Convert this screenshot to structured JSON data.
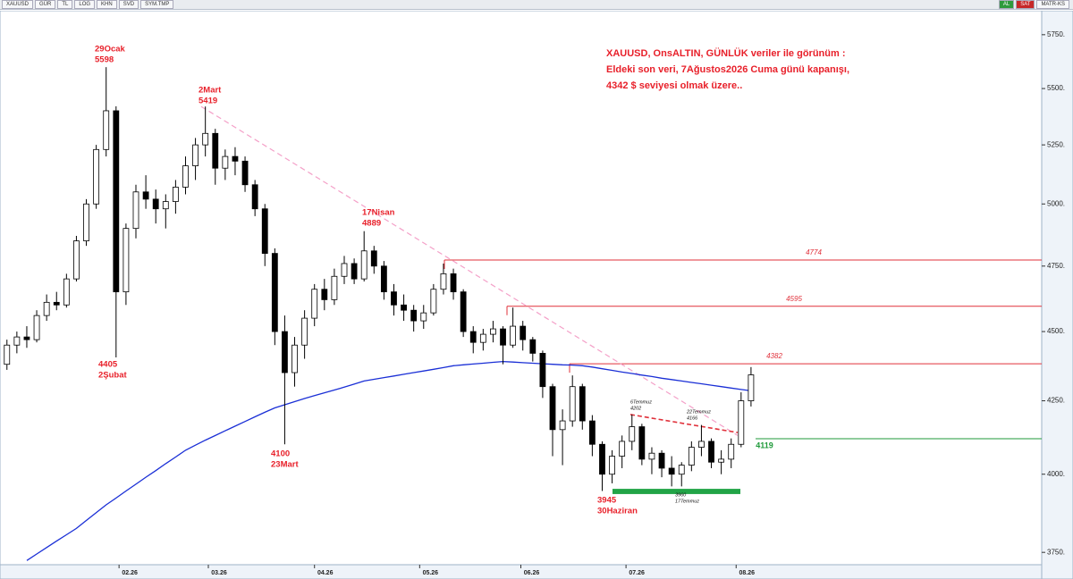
{
  "ui": {
    "toolbar_left": [
      "XAUUSD",
      "GÜR",
      "TL",
      "LOG",
      "KHN",
      "SVD",
      "SYM.TMP"
    ],
    "toolbar_right": [
      "AL",
      "SAT",
      "MATR-KS"
    ]
  },
  "chart_data": {
    "type": "candlestick",
    "log_scale": true,
    "up_color": "#ffffff",
    "down_color": "#000000",
    "categories": [
      null,
      null,
      null,
      null,
      null,
      null,
      null,
      null,
      null,
      null,
      null,
      null,
      null,
      null,
      null,
      null,
      null,
      null,
      null,
      null,
      null,
      null,
      null,
      null,
      null,
      null,
      null,
      null,
      null,
      null,
      null,
      null,
      null,
      null,
      null,
      null,
      null,
      null,
      null,
      null,
      null,
      null,
      null,
      null,
      null,
      null,
      null,
      null,
      null,
      null,
      null,
      null,
      null,
      null,
      null,
      null,
      null,
      null,
      null,
      null,
      null,
      null,
      null,
      null,
      null,
      null,
      null,
      null,
      null,
      null,
      null,
      null,
      null,
      null,
      null,
      null
    ],
    "open": [
      4380,
      4450,
      4480,
      4470,
      4560,
      4610,
      4600,
      4700,
      4850,
      5000,
      5230,
      5400,
      4650,
      4900,
      5050,
      5020,
      4980,
      5010,
      5070,
      5160,
      5250,
      5300,
      5150,
      5200,
      5180,
      5080,
      4980,
      4800,
      4500,
      4350,
      4450,
      4550,
      4660,
      4620,
      4710,
      4760,
      4700,
      4810,
      4750,
      4650,
      4600,
      4580,
      4540,
      4570,
      4660,
      4720,
      4650,
      4500,
      4460,
      4490,
      4510,
      4450,
      4520,
      4470,
      4420,
      4300,
      4150,
      4180,
      4300,
      4180,
      4100,
      4000,
      4060,
      4110,
      4160,
      4050,
      4070,
      4020,
      4000,
      4030,
      4090,
      4110,
      4040,
      4050,
      4100,
      4250
    ],
    "high": [
      4470,
      4500,
      4520,
      4580,
      4640,
      4650,
      4720,
      4870,
      5020,
      5250,
      5598,
      5420,
      4920,
      5080,
      5120,
      5060,
      5040,
      5100,
      5200,
      5280,
      5419,
      5320,
      5230,
      5240,
      5200,
      5100,
      5000,
      4820,
      4560,
      4480,
      4580,
      4680,
      4700,
      4740,
      4790,
      4780,
      4889,
      4830,
      4770,
      4680,
      4640,
      4600,
      4600,
      4680,
      4760,
      4740,
      4660,
      4520,
      4510,
      4540,
      4520,
      4590,
      4540,
      4480,
      4430,
      4310,
      4220,
      4340,
      4310,
      4200,
      4110,
      4080,
      4130,
      4202,
      4170,
      4090,
      4080,
      4060,
      4040,
      4110,
      4166,
      4120,
      4080,
      4120,
      4280,
      4370
    ],
    "low": [
      4360,
      4420,
      4440,
      4460,
      4540,
      4580,
      4590,
      4690,
      4830,
      4980,
      5200,
      4405,
      4600,
      4860,
      4980,
      4920,
      4900,
      4960,
      5040,
      5100,
      5200,
      5080,
      5100,
      5120,
      5050,
      4950,
      4750,
      4450,
      4100,
      4300,
      4400,
      4520,
      4580,
      4600,
      4680,
      4680,
      4690,
      4720,
      4620,
      4560,
      4540,
      4500,
      4510,
      4560,
      4640,
      4620,
      4480,
      4420,
      4430,
      4460,
      4380,
      4440,
      4430,
      4390,
      4260,
      4060,
      4030,
      4160,
      4150,
      4060,
      3945,
      3970,
      4020,
      4080,
      4030,
      4000,
      3990,
      3960,
      3960,
      4010,
      4060,
      4020,
      4000,
      4020,
      4090,
      4230
    ],
    "close": [
      4450,
      4480,
      4470,
      4560,
      4610,
      4600,
      4700,
      4850,
      5000,
      5230,
      5400,
      4650,
      4900,
      5050,
      5020,
      4980,
      5010,
      5070,
      5160,
      5250,
      5300,
      5150,
      5200,
      5180,
      5080,
      4980,
      4800,
      4500,
      4350,
      4450,
      4550,
      4660,
      4620,
      4710,
      4760,
      4700,
      4810,
      4750,
      4650,
      4600,
      4580,
      4540,
      4570,
      4660,
      4720,
      4650,
      4500,
      4460,
      4490,
      4510,
      4450,
      4520,
      4470,
      4420,
      4300,
      4150,
      4180,
      4300,
      4180,
      4100,
      4000,
      4060,
      4110,
      4160,
      4050,
      4070,
      4020,
      4000,
      4030,
      4090,
      4110,
      4040,
      4050,
      4100,
      4250,
      4342
    ],
    "ma": {
      "color": "#1a2fd6",
      "values": [
        null,
        null,
        3725,
        3745,
        3765,
        3785,
        3805,
        3825,
        3850,
        3875,
        3900,
        3922,
        3945,
        3967,
        3990,
        4012,
        4035,
        4057,
        4080,
        4097,
        4114,
        4130,
        4146,
        4162,
        4178,
        4194,
        4210,
        4225,
        4236,
        4247,
        4258,
        4268,
        4278,
        4288,
        4298,
        4309,
        4320,
        4326,
        4332,
        4338,
        4344,
        4350,
        4356,
        4362,
        4368,
        4375,
        4378,
        4381,
        4384,
        4387,
        4390,
        4388,
        4386,
        4384,
        4382,
        4380,
        4378,
        4377,
        4375,
        4370,
        4364,
        4358,
        4352,
        4347,
        4341,
        4336,
        4330,
        4325,
        4320,
        4315,
        4310,
        4305,
        4300,
        4295,
        4290,
        4285
      ]
    },
    "ylim": [
      3712,
      5865
    ],
    "yticks": [
      {
        "value": 3750,
        "label": "3750."
      },
      {
        "value": 4000,
        "label": "4000."
      },
      {
        "value": 4250,
        "label": "4250."
      },
      {
        "value": 4500,
        "label": "4500."
      },
      {
        "value": 4750,
        "label": "4750."
      },
      {
        "value": 5000,
        "label": "5000."
      },
      {
        "value": 5250,
        "label": "5250."
      },
      {
        "value": 5500,
        "label": "5500."
      },
      {
        "value": 5750,
        "label": "5750."
      }
    ],
    "xlim": [
      -0.7,
      104.3
    ],
    "xticks": [
      {
        "value": 11.3,
        "label": "02.26"
      },
      {
        "value": 20.3,
        "label": "03.26"
      },
      {
        "value": 31.0,
        "label": "04.26"
      },
      {
        "value": 41.6,
        "label": "05.26"
      },
      {
        "value": 51.8,
        "label": "06.26"
      },
      {
        "value": 62.4,
        "label": "07.26"
      },
      {
        "value": 73.5,
        "label": "08.26"
      }
    ],
    "levels": [
      {
        "value": 4774,
        "color": "#e0303a"
      },
      {
        "value": 4595,
        "color": "#e0303a"
      },
      {
        "value": 4382,
        "color": "#e0303a"
      },
      {
        "value": 4119,
        "color": "#1f9a3a"
      }
    ],
    "zone": {
      "low": 3935,
      "high": 3952,
      "color": "#22a447"
    },
    "trendlines": [
      {
        "values": [
          5419,
          4130
        ],
        "color": "#f4a0c8"
      },
      {
        "values": [
          4202,
          4140
        ],
        "color": "#e0303a"
      }
    ],
    "annotations": [
      {
        "label": "29Ocak",
        "value": 5598
      },
      {
        "label": "2Mart",
        "value": 5419
      },
      {
        "label": "17Nisan",
        "value": 4889
      },
      {
        "label": "2Şubat",
        "value": 4405
      },
      {
        "label": "23Mart",
        "value": 4100
      },
      {
        "label": "30Haziran",
        "value": 3945
      },
      {
        "label": "6Temmuz",
        "value": 4202
      },
      {
        "label": "22Temmuz",
        "value": 4166
      },
      {
        "label": "17Temmuz",
        "value": 3960
      }
    ],
    "note": {
      "color": "#e8202a",
      "lines": [
        "XAUUSD, OnsALTIN, GÜNLÜK veriler ile görünüm :",
        "Eldeki son veri, 7Ağustos2026 Cuma günü kapanışı,",
        "4342 $ seviyesi olmak üzere.."
      ]
    }
  }
}
